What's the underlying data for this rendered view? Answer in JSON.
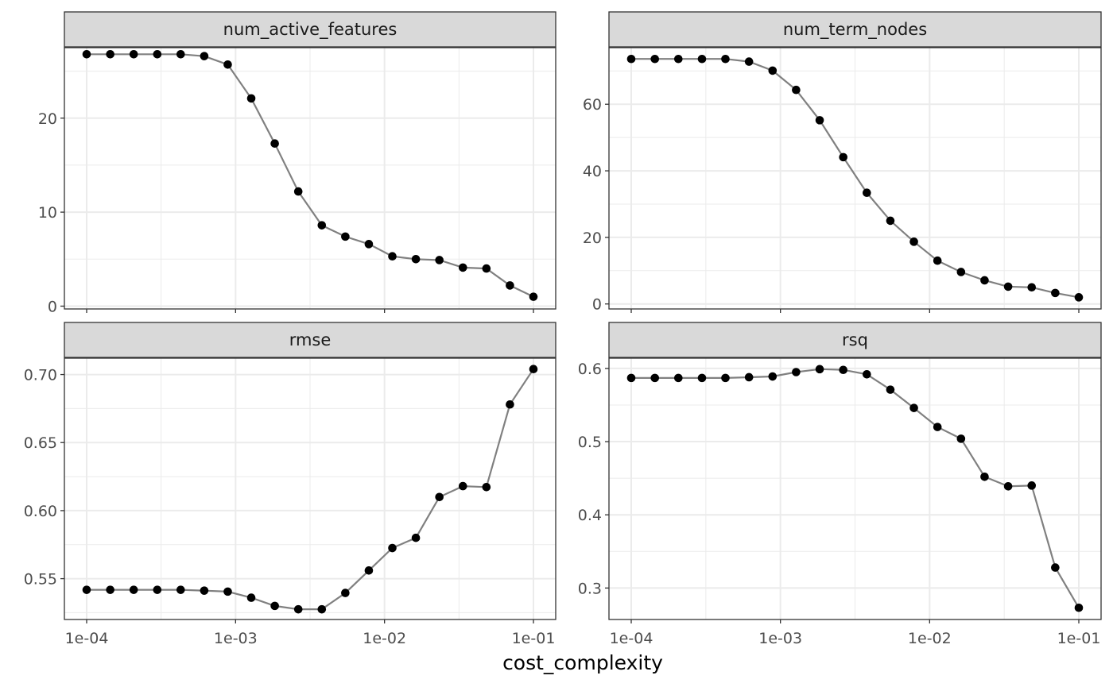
{
  "chart_data": {
    "type": "line",
    "xlabel": "cost_complexity",
    "x_scale": "log10",
    "xlim": [
      0.0001,
      0.1
    ],
    "x_ticks": [
      0.0001,
      0.001,
      0.01,
      0.1
    ],
    "x_tick_labels": [
      "1e-04",
      "1e-03",
      "1e-02",
      "1e-01"
    ],
    "x": [
      0.0001,
      0.000144,
      0.000207,
      0.000298,
      0.000428,
      0.000616,
      0.000886,
      0.001274,
      0.001833,
      0.002637,
      0.003793,
      0.005456,
      0.007848,
      0.011288,
      0.016238,
      0.023357,
      0.033598,
      0.048329,
      0.069519,
      0.1
    ],
    "grid": true,
    "colors": {
      "line": "#808080",
      "point": "#000000",
      "strip": "#d9d9d9",
      "grid": "#ebebeb"
    },
    "panels": [
      {
        "title": "num_active_features",
        "ylim": [
          -0.3,
          27.5
        ],
        "y_ticks": [
          0,
          10,
          20
        ],
        "y_tick_labels": [
          "0",
          "10",
          "20"
        ],
        "values": [
          26.8,
          26.8,
          26.8,
          26.8,
          26.8,
          26.6,
          25.7,
          22.1,
          17.3,
          12.2,
          8.6,
          7.4,
          6.6,
          5.3,
          5.0,
          4.9,
          4.1,
          4.0,
          2.2,
          1.0
        ]
      },
      {
        "title": "num_term_nodes",
        "ylim": [
          -1.5,
          77
        ],
        "y_ticks": [
          0,
          20,
          40,
          60
        ],
        "y_tick_labels": [
          "0",
          "20",
          "40",
          "60"
        ],
        "values": [
          73.6,
          73.6,
          73.6,
          73.6,
          73.6,
          72.8,
          70.1,
          64.3,
          55.2,
          44.1,
          33.4,
          25.0,
          18.7,
          13.0,
          9.6,
          7.1,
          5.2,
          5.0,
          3.3,
          2.0
        ]
      },
      {
        "title": "rmse",
        "ylim": [
          0.52,
          0.712
        ],
        "y_ticks": [
          0.55,
          0.6,
          0.65,
          0.7
        ],
        "y_tick_labels": [
          "0.55",
          "0.60",
          "0.65",
          "0.70"
        ],
        "values": [
          0.5418,
          0.5418,
          0.5418,
          0.5418,
          0.5418,
          0.5412,
          0.5405,
          0.536,
          0.53,
          0.5275,
          0.5275,
          0.5395,
          0.556,
          0.5725,
          0.58,
          0.61,
          0.618,
          0.6173,
          0.678,
          0.704
        ]
      },
      {
        "title": "rsq",
        "ylim": [
          0.257,
          0.614
        ],
        "y_ticks": [
          0.3,
          0.4,
          0.5,
          0.6
        ],
        "y_tick_labels": [
          "0.3",
          "0.4",
          "0.5",
          "0.6"
        ],
        "values": [
          0.587,
          0.587,
          0.587,
          0.587,
          0.587,
          0.588,
          0.589,
          0.595,
          0.599,
          0.598,
          0.592,
          0.571,
          0.546,
          0.52,
          0.504,
          0.452,
          0.439,
          0.44,
          0.328,
          0.273
        ]
      }
    ]
  }
}
